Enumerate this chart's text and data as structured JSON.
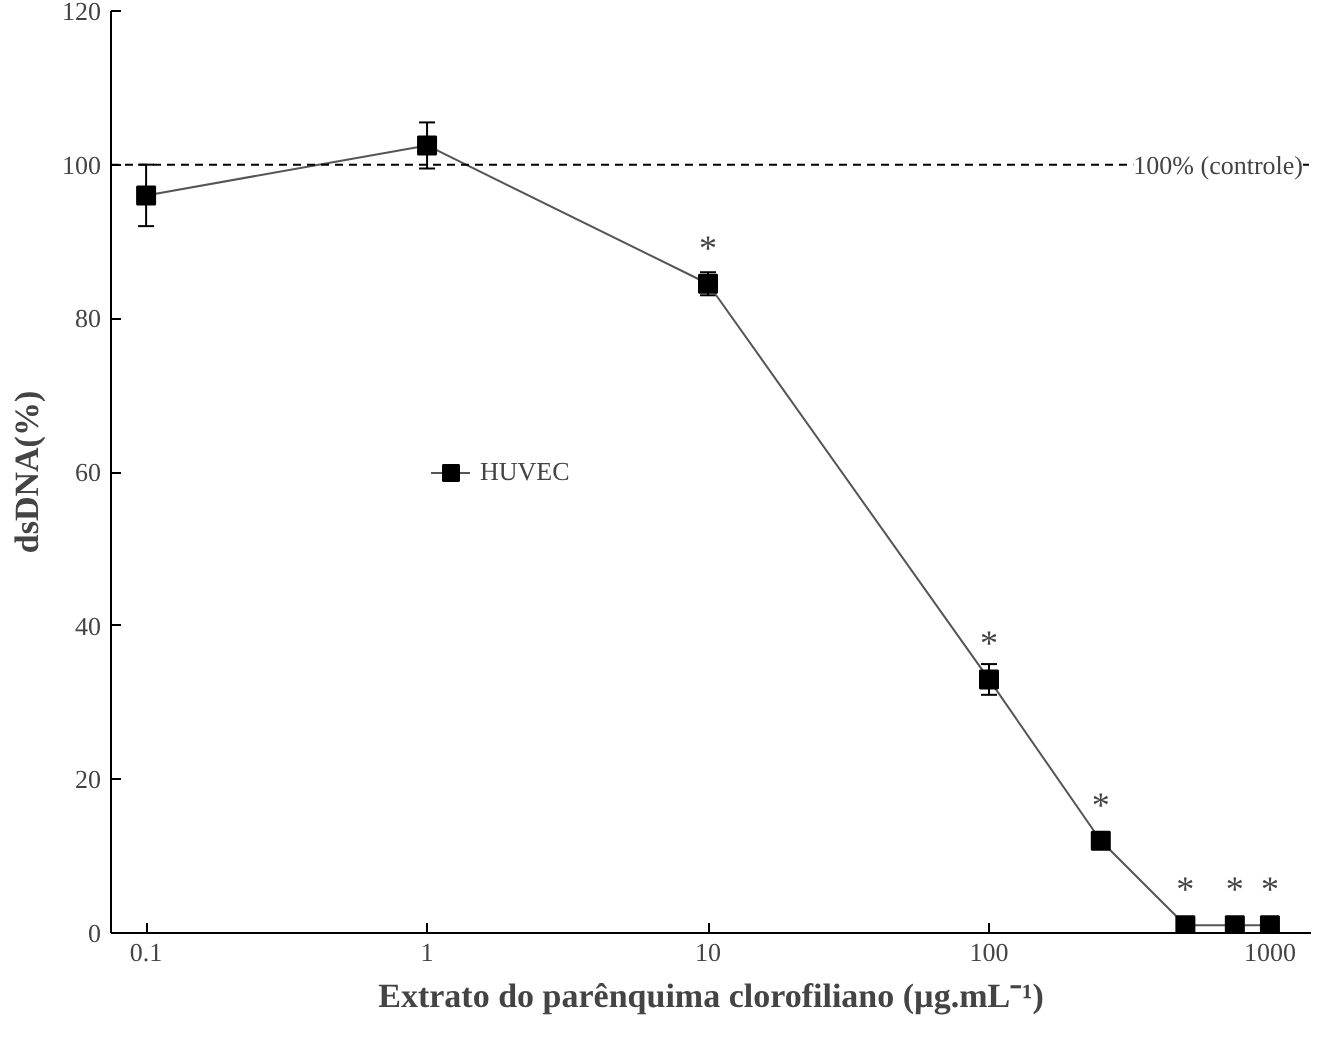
{
  "chart_data": {
    "type": "line",
    "xlabel": "Extrato do parênquima clorofiliano (µg.mL⁻¹)",
    "ylabel": "dsDNA(%)",
    "x": [
      0.1,
      1,
      10,
      100,
      250,
      500,
      750,
      1000
    ],
    "series": [
      {
        "name": "HUVEC",
        "color": "#000000",
        "values": [
          96,
          102.5,
          84.5,
          33,
          12,
          1,
          1,
          1
        ],
        "errors": [
          4,
          3,
          1.5,
          2,
          null,
          null,
          null,
          null
        ]
      }
    ],
    "log": "x",
    "xlim": [
      0.075,
      1400
    ],
    "xticks": [
      0.1,
      1,
      10,
      100,
      1000
    ],
    "ylim": [
      0,
      120
    ],
    "yticks": [
      0,
      20,
      40,
      60,
      80,
      100,
      120
    ],
    "marker": "square",
    "line_style": "solid",
    "legend": "left",
    "grid": false,
    "ref_lines": [
      {
        "axis": "y",
        "value": 100,
        "label": "100% (controle)",
        "color": "#000000",
        "line_style": "dashed"
      }
    ],
    "annotations": [
      {
        "text": "*",
        "x": 10,
        "y": 84.5
      },
      {
        "text": "*",
        "x": 100,
        "y": 33
      },
      {
        "text": "*",
        "x": 250,
        "y": 12
      },
      {
        "text": "*",
        "x": 500,
        "y": 1
      },
      {
        "text": "*",
        "x": 750,
        "y": 1
      },
      {
        "text": "*",
        "x": 1000,
        "y": 1
      }
    ]
  }
}
